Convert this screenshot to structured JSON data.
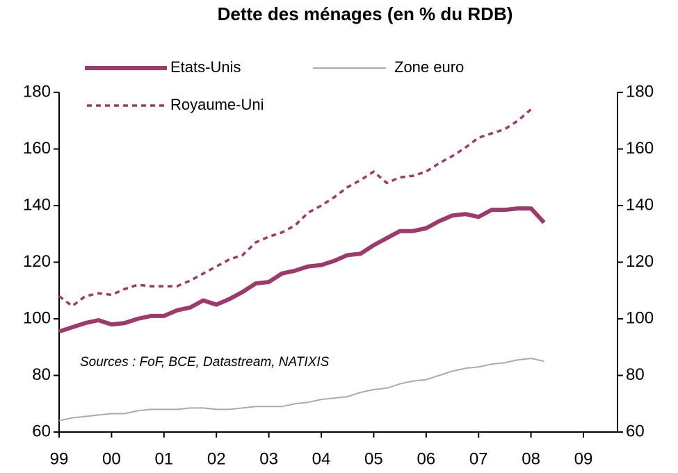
{
  "chart_data": {
    "type": "line",
    "title": "Dette des ménages (en % du RDB)",
    "annotation": "Sources : FoF, BCE, Datastream, NATIXIS",
    "x": [
      1999,
      1999.25,
      1999.5,
      1999.75,
      2000,
      2000.25,
      2000.5,
      2000.75,
      2001,
      2001.25,
      2001.5,
      2001.75,
      2002,
      2002.25,
      2002.5,
      2002.75,
      2003,
      2003.25,
      2003.5,
      2003.75,
      2004,
      2004.25,
      2004.5,
      2004.75,
      2005,
      2005.25,
      2005.5,
      2005.75,
      2006,
      2006.25,
      2006.5,
      2006.75,
      2007,
      2007.25,
      2007.5,
      2007.75,
      2008,
      2008.25
    ],
    "series": [
      {
        "name": "Etats-Unis",
        "color": "#9b3a6b",
        "style": "solid",
        "width": 6,
        "values": [
          95.5,
          97,
          98.5,
          99.5,
          98,
          98.5,
          100,
          101,
          101,
          103,
          104,
          106.5,
          105,
          107,
          109.5,
          112.5,
          113,
          116,
          117,
          118.5,
          119,
          120.5,
          122.5,
          123,
          126,
          128.5,
          131,
          131,
          132,
          134.5,
          136.5,
          137,
          136,
          138.5,
          138.5,
          139,
          139,
          134
        ]
      },
      {
        "name": "Zone euro",
        "color": "#aaaaaa",
        "style": "solid",
        "width": 2,
        "values": [
          64,
          65,
          65.5,
          66,
          66.5,
          66.5,
          67.5,
          68,
          68,
          68,
          68.5,
          68.5,
          68,
          68,
          68.5,
          69,
          69,
          69,
          70,
          70.5,
          71.5,
          72,
          72.5,
          74,
          75,
          75.5,
          77,
          78,
          78.5,
          80,
          81.5,
          82.5,
          83,
          84,
          84.5,
          85.5,
          86,
          85
        ]
      },
      {
        "name": "Royaume-Uni",
        "color": "#9b3a6b",
        "style": "dotted",
        "width": 3.5,
        "values": [
          108,
          104.5,
          108,
          109,
          108.5,
          110.5,
          112,
          111.5,
          111.5,
          111.5,
          113.5,
          116,
          118.5,
          121,
          122.5,
          127,
          129,
          130.5,
          133,
          137.5,
          140,
          143,
          146.5,
          149,
          152,
          148,
          150,
          150.5,
          152,
          155,
          157.5,
          160.5,
          164,
          165.5,
          167,
          170,
          174,
          null
        ]
      }
    ],
    "xlim": [
      1999,
      2009.65
    ],
    "xticks": [
      {
        "value": 1999,
        "label": "99"
      },
      {
        "value": 2000,
        "label": "00"
      },
      {
        "value": 2001,
        "label": "01"
      },
      {
        "value": 2002,
        "label": "02"
      },
      {
        "value": 2003,
        "label": "03"
      },
      {
        "value": 2004,
        "label": "04"
      },
      {
        "value": 2005,
        "label": "05"
      },
      {
        "value": 2006,
        "label": "06"
      },
      {
        "value": 2007,
        "label": "07"
      },
      {
        "value": 2008,
        "label": "08"
      },
      {
        "value": 2009,
        "label": "09"
      }
    ],
    "ylim": [
      60,
      180
    ],
    "yticks": [
      60,
      80,
      100,
      120,
      140,
      160,
      180
    ],
    "y2lim": [
      60,
      180
    ],
    "y2ticks": [
      60,
      80,
      100,
      120,
      140,
      160,
      180
    ],
    "grid": false,
    "title_color": "#9b3a6b"
  }
}
